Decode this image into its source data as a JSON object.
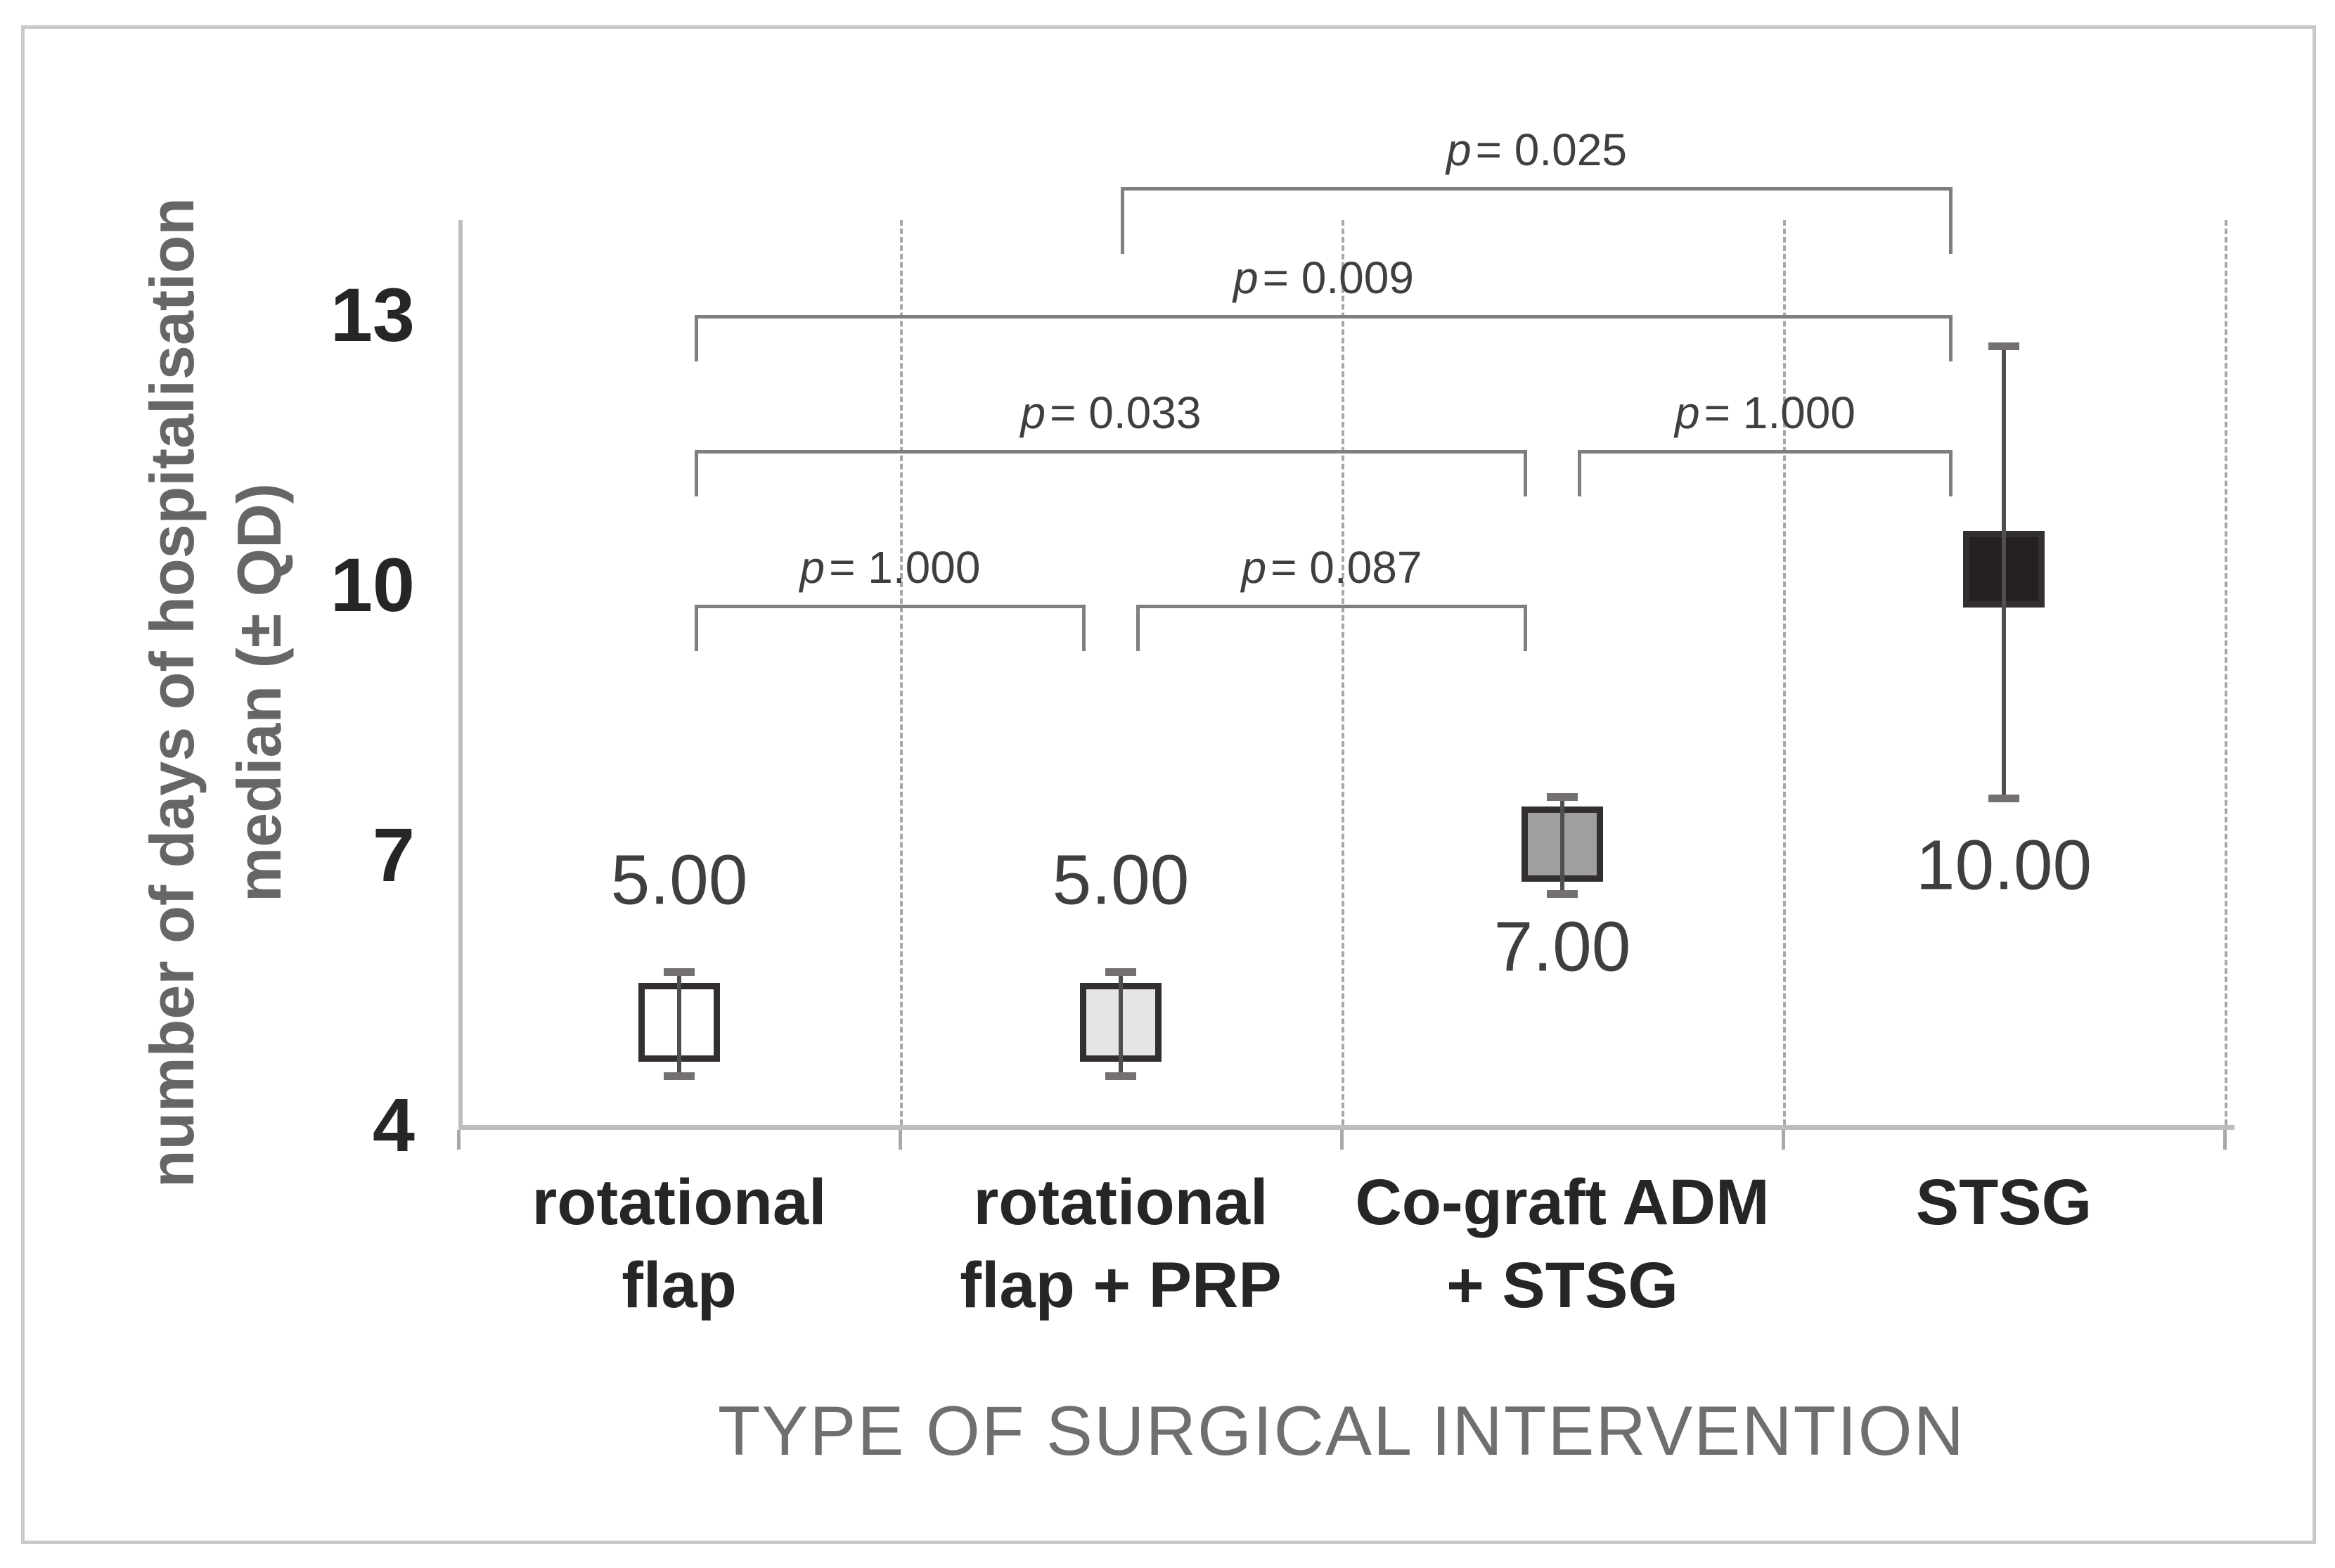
{
  "figure": {
    "background_color": "#ffffff",
    "border_color": "#c9c9c9"
  },
  "chart_data": {
    "type": "box-error",
    "title": "",
    "xlabel": "TYPE OF SURGICAL INTERVENTION",
    "ylabel_lines": [
      "number of days of hospitalisation",
      "median (± QD)"
    ],
    "y_ticks": [
      13,
      10,
      7,
      4
    ],
    "y_axis_range": [
      4,
      14.1
    ],
    "grid": "vertical-dashed-category-separators",
    "legend": "none",
    "p_symbol": "p",
    "categories": [
      "rotational flap",
      "rotational flap + PRP",
      "Co-graft ADM + STSG",
      "STSG"
    ],
    "category_label_lines": [
      [
        "rotational",
        "flap"
      ],
      [
        "rotational",
        "flap + PRP"
      ],
      [
        "Co-graft ADM",
        "+ STSG"
      ],
      [
        "STSG"
      ]
    ],
    "series": [
      {
        "category": "rotational flap",
        "median": 5.0,
        "median_label": "5.00",
        "box_low": 4.7,
        "box_high": 5.58,
        "whisker_low": 4.55,
        "whisker_high": 5.7,
        "fill": "#ffffff",
        "label_side": "above",
        "label_y": 6.72
      },
      {
        "category": "rotational flap + PRP",
        "median": 5.0,
        "median_label": "5.00",
        "box_low": 4.7,
        "box_high": 5.58,
        "whisker_low": 4.55,
        "whisker_high": 5.7,
        "fill": "#e8e6e5",
        "label_side": "above",
        "label_y": 6.72
      },
      {
        "category": "Co-graft ADM + STSG",
        "median": 7.0,
        "median_label": "7.00",
        "box_low": 6.7,
        "box_high": 7.54,
        "whisker_low": 6.57,
        "whisker_high": 7.65,
        "fill": "#9f9f9f",
        "label_side": "below",
        "label_y": 5.98
      },
      {
        "category": "STSG",
        "median": 10.0,
        "median_label": "10.00",
        "box_low": 9.75,
        "box_high": 10.6,
        "whisker_low": 7.63,
        "whisker_high": 12.66,
        "fill": "#242020",
        "label_side": "below",
        "label_y": 6.88
      }
    ],
    "significance_brackets": [
      {
        "p_value": "0.025",
        "from": "rotational flap + PRP",
        "to": "STSG",
        "from_index": 1,
        "to_index": 3,
        "row": 1
      },
      {
        "p_value": "0.009",
        "from": "rotational flap",
        "to": "STSG",
        "from_index": 0,
        "to_index": 3,
        "row": 2
      },
      {
        "p_value": "0.033",
        "from": "rotational flap",
        "to": "Co-graft ADM + STSG",
        "from_index": 0,
        "to_index": 2,
        "row": 3
      },
      {
        "p_value": "1.000",
        "from": "Co-graft ADM + STSG",
        "to": "STSG",
        "from_index": 2,
        "to_index": 3,
        "row": 3
      },
      {
        "p_value": "1.000",
        "from": "rotational flap",
        "to": "rotational flap + PRP",
        "from_index": 0,
        "to_index": 1,
        "row": 4
      },
      {
        "p_value": "0.087",
        "from": "rotational flap + PRP",
        "to": "Co-graft ADM + STSG",
        "from_index": 1,
        "to_index": 2,
        "row": 4
      }
    ],
    "colors": {
      "box_border": "#332f2f",
      "box_fills": [
        "#ffffff",
        "#e8e6e5",
        "#9f9f9f",
        "#242020"
      ],
      "whisker": "#4f4f4f",
      "whisker_cap": "#757070",
      "bracket": "#7f7f7f",
      "gridline": "#a8a8a8",
      "axis_line": "#bdbdbd",
      "tick_text": "#262626",
      "value_text": "#3f3f3f",
      "x_title_text": "#6f6f6f",
      "y_title_text": "#666666"
    }
  }
}
